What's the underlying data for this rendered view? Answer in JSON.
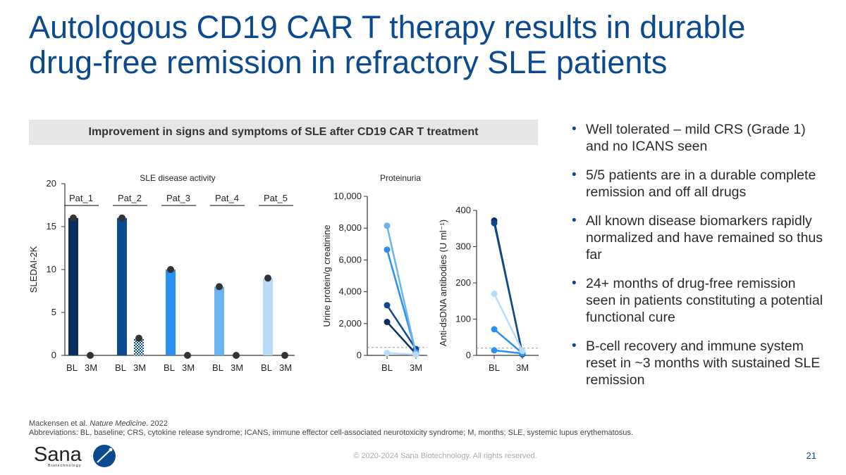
{
  "slide": {
    "title_line1": "Autologous CD19 CAR T therapy results in durable",
    "title_line2": "drug-free remission in refractory SLE patients",
    "banner": "Improvement in signs and symptoms of SLE after CD19 CAR T treatment",
    "bullets": [
      "Well tolerated – mild CRS (Grade 1) and no ICANS seen",
      "5/5 patients are in a durable complete remission and off all drugs",
      "All known disease biomarkers rapidly normalized and have remained so thus far",
      "24+ months of drug-free remission seen in patients constituting a potential functional cure",
      "B-cell recovery and immune system reset in ~3 months with sustained SLE remission"
    ],
    "reference_prefix": "Mackensen et al. ",
    "reference_journal": "Nature Medicine.",
    "reference_year": " 2022",
    "abbreviations": "Abbreviations: BL, baseline; CRS, cytokine release syndrome; ICANS, immune effector cell-associated neurotoxicity syndrome; M, months; SLE, systemic lupus erythematosus.",
    "copyright": "© 2020-2024 Sana Biotechnology. All rights reserved.",
    "page_number": "21",
    "logo_text": "Sana",
    "logo_subtext": "Biotechnology"
  },
  "colors": {
    "title": "#0b4a8f",
    "pat_1": "#0b2f5e",
    "pat_2": "#0d4a8f",
    "pat_3": "#2b8ff0",
    "pat_4": "#6cb3f2",
    "pat_5": "#b8dbfa",
    "marker": "#333333"
  },
  "chart_data": [
    {
      "type": "bar",
      "title": "SLE disease activity",
      "ylabel": "SLEDAI-2K",
      "ylim": [
        0,
        20
      ],
      "yticks": [
        "0",
        "5",
        "10",
        "15",
        "20"
      ],
      "groups": [
        "Pat_1",
        "Pat_2",
        "Pat_3",
        "Pat_4",
        "Pat_5"
      ],
      "categories": [
        "BL",
        "3M"
      ],
      "series": [
        {
          "name": "Pat_1",
          "values": [
            16,
            0
          ]
        },
        {
          "name": "Pat_2",
          "values": [
            16,
            2
          ]
        },
        {
          "name": "Pat_3",
          "values": [
            10,
            0
          ]
        },
        {
          "name": "Pat_4",
          "values": [
            8,
            0
          ]
        },
        {
          "name": "Pat_5",
          "values": [
            9,
            0
          ]
        }
      ]
    },
    {
      "type": "line",
      "title": "Proteinuria",
      "ylabel": "Urine protein/g creatinine",
      "ylim": [
        0,
        10000
      ],
      "yticks": [
        "0",
        "2,000",
        "4,000",
        "6,000",
        "8,000",
        "10,000"
      ],
      "categories": [
        "BL",
        "3M"
      ],
      "reference_line": 500,
      "series": [
        {
          "values": [
            2100,
            100
          ]
        },
        {
          "values": [
            3150,
            400
          ]
        },
        {
          "values": [
            6650,
            200
          ]
        },
        {
          "values": [
            8150,
            100
          ]
        },
        {
          "values": [
            150,
            50
          ]
        }
      ]
    },
    {
      "type": "line",
      "title": "",
      "ylabel": "Anti-dsDNA antibodies (U ml⁻¹)",
      "ylim": [
        0,
        400
      ],
      "yticks": [
        "0",
        "100",
        "200",
        "300",
        "400"
      ],
      "categories": [
        "BL",
        "3M"
      ],
      "reference_line": 20,
      "series": [
        {
          "values": [
            372,
            3
          ]
        },
        {
          "values": [
            365,
            5
          ]
        },
        {
          "values": [
            14,
            5
          ]
        },
        {
          "values": [
            72,
            6
          ]
        },
        {
          "values": [
            170,
            12
          ]
        }
      ]
    }
  ]
}
